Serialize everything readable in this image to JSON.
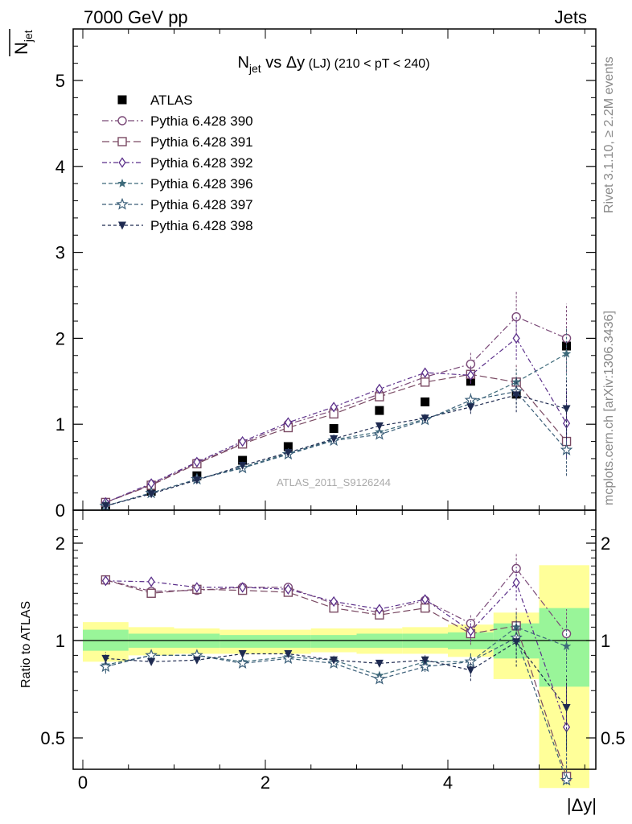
{
  "header": {
    "left": "7000 GeV pp",
    "right": "Jets"
  },
  "side_labels": {
    "rivet": "Rivet 3.1.10, ≥ 2.2M events",
    "mcplots": "mcplots.cern.ch [arXiv:1306.3436]"
  },
  "watermark": "ATLAS_2011_S9126244",
  "colors": {
    "atlas": "#000000",
    "p390": "#7b4a78",
    "p391": "#7a4a63",
    "p392": "#5b2f8a",
    "p396": "#3d6a7a",
    "p397": "#3a5e78",
    "p398": "#1e2a50",
    "band_yellow": "#ffff99",
    "band_green": "#99f599"
  },
  "chart_data": [
    {
      "type": "scatter",
      "title_main": "N",
      "title_sub": "jet",
      "title_rest": " vs Δy",
      "title_small": " (LJ)",
      "title_range": " (210 < pT < 240)",
      "ylabel_main": "N",
      "ylabel_sub": "jet",
      "xlim": [
        -0.1,
        5.6
      ],
      "ylim": [
        0,
        5.6
      ],
      "yticks": [
        0,
        1,
        2,
        3,
        4,
        5
      ],
      "x": [
        0.25,
        0.75,
        1.25,
        1.75,
        2.25,
        2.75,
        3.25,
        3.75,
        4.25,
        4.75,
        5.3
      ],
      "series": [
        {
          "name": "ATLAS",
          "key": "atlas",
          "marker": "square-filled",
          "dash": "",
          "values": [
            0.06,
            0.22,
            0.4,
            0.58,
            0.74,
            0.95,
            1.16,
            1.26,
            1.5,
            1.35,
            1.91
          ]
        },
        {
          "name": "Pythia 6.428 390",
          "key": "p390",
          "marker": "circle-open",
          "dash": "8,3,2,3",
          "values": [
            0.09,
            0.3,
            0.55,
            0.78,
            1.0,
            1.16,
            1.35,
            1.55,
            1.7,
            2.25,
            2.0
          ],
          "err": [
            0.01,
            0.02,
            0.02,
            0.02,
            0.03,
            0.03,
            0.04,
            0.06,
            0.13,
            0.3,
            0.4
          ]
        },
        {
          "name": "Pythia 6.428 391",
          "key": "p391",
          "marker": "square-open",
          "dash": "9,4",
          "values": [
            0.09,
            0.29,
            0.54,
            0.77,
            0.96,
            1.12,
            1.32,
            1.49,
            1.58,
            1.49,
            0.8
          ],
          "err": [
            0.01,
            0.02,
            0.02,
            0.02,
            0.03,
            0.03,
            0.04,
            0.05,
            0.1,
            0.2,
            0.4
          ]
        },
        {
          "name": "Pythia 6.428 392",
          "key": "p392",
          "marker": "diamond-open",
          "dash": "6,3,2,3",
          "values": [
            0.09,
            0.31,
            0.56,
            0.8,
            1.02,
            1.2,
            1.41,
            1.6,
            1.57,
            2.0,
            1.01
          ],
          "err": [
            0.01,
            0.02,
            0.02,
            0.02,
            0.03,
            0.03,
            0.04,
            0.05,
            0.1,
            0.25,
            0.4
          ]
        },
        {
          "name": "Pythia 6.428 396",
          "key": "p396",
          "marker": "star-filled",
          "dash": "5,3",
          "values": [
            0.05,
            0.2,
            0.36,
            0.5,
            0.66,
            0.82,
            0.91,
            1.06,
            1.24,
            1.49,
            1.82
          ],
          "err": [
            0.01,
            0.01,
            0.02,
            0.02,
            0.02,
            0.03,
            0.03,
            0.04,
            0.08,
            0.15,
            0.3
          ]
        },
        {
          "name": "Pythia 6.428 397",
          "key": "p397",
          "marker": "star-open",
          "dash": "5,3",
          "values": [
            0.05,
            0.2,
            0.36,
            0.49,
            0.65,
            0.81,
            0.88,
            1.05,
            1.28,
            1.38,
            0.7
          ],
          "err": [
            0.01,
            0.01,
            0.02,
            0.02,
            0.02,
            0.03,
            0.03,
            0.04,
            0.08,
            0.15,
            0.3
          ]
        },
        {
          "name": "Pythia 6.428 398",
          "key": "p398",
          "marker": "triangle-down-filled",
          "dash": "4,3",
          "values": [
            0.05,
            0.19,
            0.35,
            0.52,
            0.67,
            0.83,
            0.98,
            1.07,
            1.2,
            1.34,
            1.18
          ],
          "err": [
            0.01,
            0.01,
            0.02,
            0.02,
            0.02,
            0.03,
            0.03,
            0.04,
            0.08,
            0.2,
            0.35
          ]
        }
      ],
      "legend_position": "top-left"
    },
    {
      "type": "scatter",
      "ylabel": "Ratio to ATLAS",
      "xlabel": "|Δy|",
      "xlim": [
        -0.1,
        5.6
      ],
      "ylim": [
        0.35,
        2.3
      ],
      "yticks": [
        0.5,
        1,
        2
      ],
      "ytick_labels": [
        "0.5",
        "1",
        "2"
      ],
      "xticks": [
        0,
        2,
        4
      ],
      "x": [
        0.25,
        0.75,
        1.25,
        1.75,
        2.25,
        2.75,
        3.25,
        3.75,
        4.25,
        4.75,
        5.3
      ],
      "band_edges": [
        0.0,
        0.5,
        1.0,
        1.5,
        2.0,
        2.5,
        3.0,
        3.5,
        4.0,
        4.5,
        5.0,
        5.55
      ],
      "band_yellow": [
        [
          0.86,
          1.14
        ],
        [
          0.9,
          1.1
        ],
        [
          0.91,
          1.09
        ],
        [
          0.91,
          1.08
        ],
        [
          0.91,
          1.08
        ],
        [
          0.92,
          1.09
        ],
        [
          0.91,
          1.09
        ],
        [
          0.91,
          1.1
        ],
        [
          0.89,
          1.12
        ],
        [
          0.76,
          1.22
        ],
        [
          0.34,
          1.71
        ]
      ],
      "band_green": [
        [
          0.93,
          1.08
        ],
        [
          0.95,
          1.05
        ],
        [
          0.95,
          1.05
        ],
        [
          0.95,
          1.04
        ],
        [
          0.95,
          1.04
        ],
        [
          0.95,
          1.04
        ],
        [
          0.95,
          1.05
        ],
        [
          0.95,
          1.05
        ],
        [
          0.94,
          1.06
        ],
        [
          0.88,
          1.13
        ],
        [
          0.72,
          1.26
        ]
      ],
      "series": [
        {
          "name": "Pythia 6.428 390",
          "key": "p390",
          "marker": "circle-open",
          "dash": "8,3,2,3",
          "values": [
            1.54,
            1.42,
            1.43,
            1.46,
            1.46,
            1.3,
            1.22,
            1.33,
            1.13,
            1.67,
            1.05
          ],
          "err": [
            0.05,
            0.02,
            0.02,
            0.02,
            0.02,
            0.02,
            0.02,
            0.04,
            0.08,
            0.18,
            0.2
          ]
        },
        {
          "name": "Pythia 6.428 391",
          "key": "p391",
          "marker": "square-open",
          "dash": "9,4",
          "values": [
            1.54,
            1.4,
            1.44,
            1.43,
            1.41,
            1.26,
            1.2,
            1.26,
            1.05,
            1.11,
            0.38
          ],
          "err": [
            0.05,
            0.02,
            0.02,
            0.02,
            0.02,
            0.02,
            0.02,
            0.04,
            0.08,
            0.15,
            0.2
          ]
        },
        {
          "name": "Pythia 6.428 392",
          "key": "p392",
          "marker": "diamond-open",
          "dash": "6,3,2,3",
          "values": [
            1.53,
            1.52,
            1.46,
            1.46,
            1.44,
            1.32,
            1.25,
            1.34,
            1.07,
            1.51,
            0.54
          ],
          "err": [
            0.05,
            0.02,
            0.02,
            0.02,
            0.02,
            0.02,
            0.02,
            0.04,
            0.08,
            0.18,
            0.2
          ]
        },
        {
          "name": "Pythia 6.428 396",
          "key": "p396",
          "marker": "star-filled",
          "dash": "5,3",
          "values": [
            0.84,
            0.9,
            0.9,
            0.86,
            0.89,
            0.87,
            0.78,
            0.86,
            0.86,
            1.1,
            0.96
          ],
          "err": [
            0.04,
            0.02,
            0.02,
            0.02,
            0.02,
            0.02,
            0.02,
            0.03,
            0.06,
            0.12,
            0.16
          ]
        },
        {
          "name": "Pythia 6.428 397",
          "key": "p397",
          "marker": "star-open",
          "dash": "5,3",
          "values": [
            0.83,
            0.9,
            0.9,
            0.85,
            0.88,
            0.85,
            0.76,
            0.83,
            0.86,
            1.02,
            0.37
          ],
          "err": [
            0.04,
            0.02,
            0.02,
            0.02,
            0.02,
            0.02,
            0.02,
            0.03,
            0.06,
            0.12,
            0.16
          ]
        },
        {
          "name": "Pythia 6.428 398",
          "key": "p398",
          "marker": "triangle-down-filled",
          "dash": "4,3",
          "values": [
            0.88,
            0.86,
            0.87,
            0.91,
            0.91,
            0.87,
            0.85,
            0.87,
            0.81,
            0.99,
            0.62
          ],
          "err": [
            0.04,
            0.02,
            0.02,
            0.02,
            0.02,
            0.02,
            0.02,
            0.03,
            0.06,
            0.16,
            0.16
          ]
        }
      ]
    }
  ]
}
